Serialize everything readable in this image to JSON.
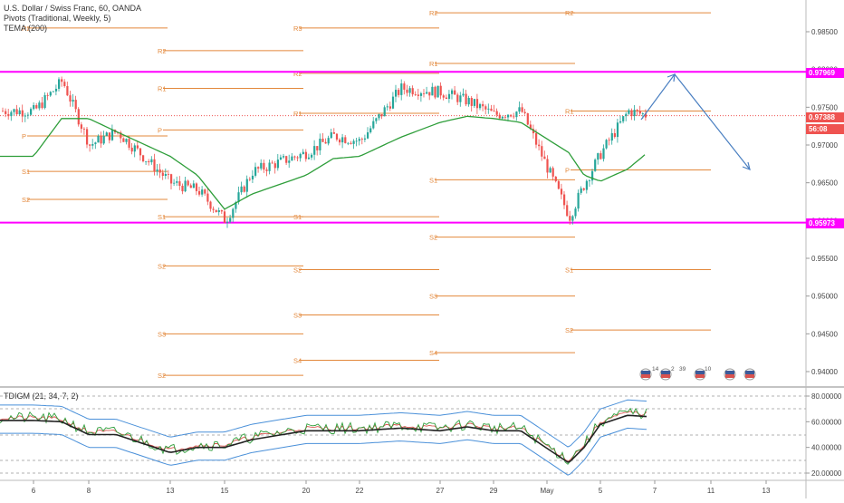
{
  "legend": {
    "title": "U.S. Dollar / Swiss Franc, 60, OANDA",
    "pivots": "Pivots (Traditional, Weekly, 5)",
    "tema": "TEMA (200)"
  },
  "tdi_legend": "TDIGM (21, 34, 7, 2)",
  "price_panel": {
    "y_ticks": [
      "0.98500",
      "0.98000",
      "0.97500",
      "0.97000",
      "0.96500",
      "0.96000",
      "0.95500",
      "0.95000",
      "0.94500",
      "0.94000"
    ],
    "ylim": [
      0.9385,
      0.9885
    ],
    "resistance_level": "0.97969",
    "support_level": "0.95973",
    "last_price": "0.97388",
    "countdown": "56:08",
    "resistance_value": 0.97969,
    "support_value": 0.95973,
    "last_value": 0.97388,
    "colors": {
      "sr_line": "#ff00ff",
      "pivot": "#e3883b",
      "tema": "#2e9e3a",
      "up": "#26a69a",
      "down": "#ef5350",
      "last": "#ef5350",
      "arrow": "#4a7fc1"
    }
  },
  "pivot_weeks": [
    {
      "labels": [
        "R2",
        "P",
        "S1",
        "S2"
      ],
      "values": [
        0.9855,
        0.9712,
        0.9665,
        0.9628
      ]
    },
    {
      "labels": [
        "R2",
        "R1",
        "P",
        "S1",
        "S2",
        "S3",
        "S2"
      ],
      "values": [
        0.9825,
        0.9775,
        0.972,
        0.9605,
        0.954,
        0.945,
        0.9395
      ]
    },
    {
      "labels": [
        "R3",
        "R2",
        "R1",
        "S1",
        "S2",
        "S3",
        "S4"
      ],
      "values": [
        0.9855,
        0.9795,
        0.9742,
        0.9605,
        0.9535,
        0.9475,
        0.9415
      ]
    },
    {
      "labels": [
        "R2",
        "R1",
        "S1",
        "S2",
        "S3",
        "S4"
      ],
      "values": [
        0.9875,
        0.9808,
        0.9654,
        0.9578,
        0.95,
        0.9425
      ]
    },
    {
      "labels": [
        "R2",
        "R1",
        "P",
        "S1",
        "S2"
      ],
      "values": [
        0.9875,
        0.9745,
        0.9667,
        0.9535,
        0.9455
      ]
    }
  ],
  "x_ticks": [
    "6",
    "8",
    "13",
    "15",
    "20",
    "22",
    "27",
    "29",
    "May",
    "5",
    "7",
    "11",
    "13"
  ],
  "tdi_panel": {
    "y_ticks": [
      "80.00000",
      "60.00000",
      "40.00000",
      "20.00000"
    ],
    "ylim": [
      14,
      86
    ]
  },
  "events": {
    "counts": [
      "14",
      "2",
      "39",
      "10"
    ]
  },
  "chart_data": {
    "type": "line",
    "title": "U.S. Dollar / Swiss Franc, 60, OANDA",
    "x": [
      "6",
      "7",
      "8",
      "10",
      "13",
      "14",
      "15",
      "17",
      "20",
      "21",
      "22",
      "24",
      "27",
      "28",
      "29",
      "30",
      "May",
      "2",
      "5",
      "6",
      "7"
    ],
    "series": [
      {
        "name": "U.S. Dollar / Swiss Franc",
        "values": [
          0.9745,
          0.9785,
          0.97,
          0.9718,
          0.965,
          0.964,
          0.96,
          0.9665,
          0.969,
          0.9712,
          0.9705,
          0.9775,
          0.977,
          0.9758,
          0.974,
          0.9745,
          0.9605,
          0.965,
          0.969,
          0.9745,
          0.9739
        ]
      },
      {
        "name": "TEMA (200)",
        "values": [
          0.9685,
          0.9735,
          0.9735,
          0.9718,
          0.9685,
          0.966,
          0.9615,
          0.9635,
          0.966,
          0.9682,
          0.9685,
          0.971,
          0.973,
          0.9738,
          0.9735,
          0.973,
          0.969,
          0.966,
          0.9652,
          0.9668,
          0.969
        ]
      },
      {
        "name": "TDIGM (21, 34, 7, 2)",
        "values": [
          63,
          62,
          52,
          52,
          38,
          42,
          42,
          48,
          55,
          55,
          55,
          57,
          55,
          58,
          55,
          55,
          30,
          42,
          60,
          67,
          66
        ]
      }
    ],
    "ylim": [
      0.9385,
      0.9885
    ]
  }
}
